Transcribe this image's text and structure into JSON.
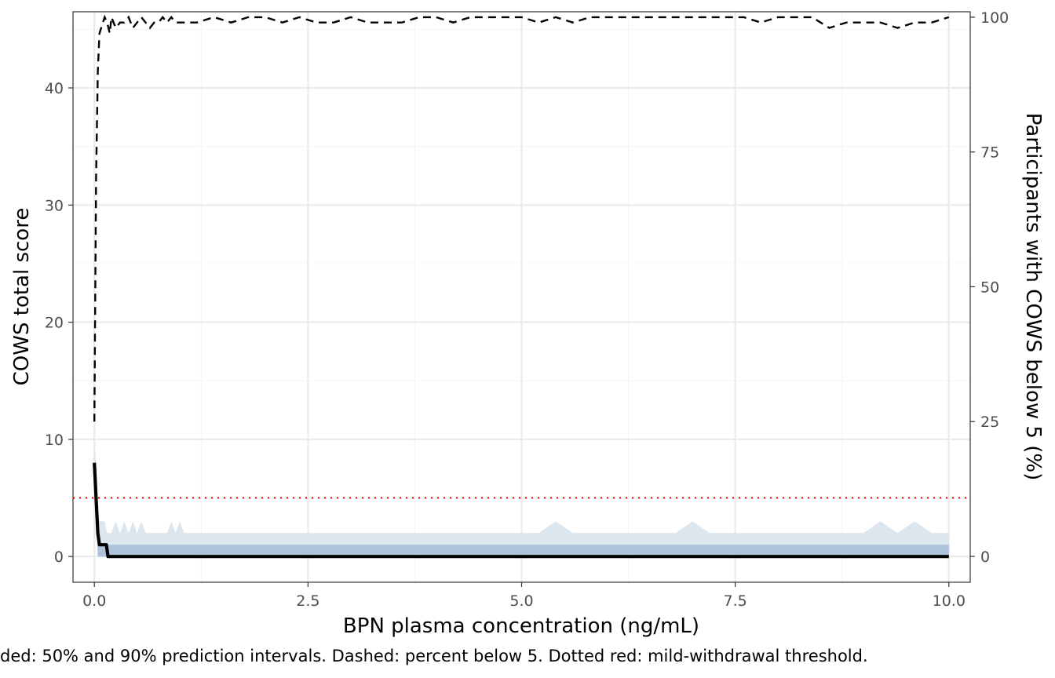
{
  "chart_data": {
    "type": "line",
    "xlabel": "BPN plasma concentration (ng/mL)",
    "ylabel": "COWS total score",
    "y2label": "Participants with COWS below 5 (%)",
    "caption": "ded: 50% and 90% prediction intervals. Dashed: percent below 5. Dotted red: mild-withdrawal threshold.",
    "xlim": [
      -0.25,
      10.25
    ],
    "ylim": [
      -2.2,
      46.5
    ],
    "y2lim": [
      -4.8,
      101.0
    ],
    "x_ticks": [
      0.0,
      2.5,
      5.0,
      7.5,
      10.0
    ],
    "x_tick_labels": [
      "0.0",
      "2.5",
      "5.0",
      "7.5",
      "10.0"
    ],
    "y_ticks": [
      0,
      10,
      20,
      30,
      40
    ],
    "y_tick_labels": [
      "0",
      "10",
      "20",
      "30",
      "40"
    ],
    "y2_ticks": [
      0,
      25,
      50,
      75,
      100
    ],
    "y2_tick_labels": [
      "0",
      "25",
      "50",
      "75",
      "100"
    ],
    "grid": true,
    "threshold": 5,
    "colors": {
      "band90": "#dce6ef",
      "band50": "#aec2dc",
      "median": "#000000",
      "percent_line": "#000000",
      "threshold": "#ff0000",
      "grid_major": "#ebebeb",
      "grid_minor": "#f5f5f5",
      "panel_border": "#333333"
    },
    "series": [
      {
        "role": "median",
        "axis": "left",
        "x": [
          0.0,
          0.02,
          0.04,
          0.06,
          0.08,
          0.1,
          0.12,
          0.14,
          0.16,
          0.2,
          1.0,
          2.0,
          3.0,
          4.0,
          5.0,
          6.0,
          7.0,
          8.0,
          9.0,
          10.0
        ],
        "y": [
          8,
          5,
          2,
          1,
          1,
          1,
          1,
          1,
          0,
          0,
          0,
          0,
          0,
          0,
          0,
          0,
          0,
          0,
          0,
          0
        ]
      },
      {
        "role": "band50",
        "axis": "left",
        "x": [
          0.0,
          0.02,
          0.04,
          0.06,
          0.1,
          2.0,
          4.0,
          6.0,
          8.0,
          10.0
        ],
        "lower": [
          7,
          4,
          0,
          0,
          0,
          0,
          0,
          0,
          0,
          0
        ],
        "upper": [
          8,
          6,
          2,
          1,
          1,
          1,
          1,
          1,
          1,
          1
        ]
      },
      {
        "role": "band90",
        "axis": "left",
        "x": [
          0.0,
          0.02,
          0.04,
          0.06,
          0.1,
          0.12,
          0.15,
          0.2,
          0.25,
          0.3,
          0.35,
          0.4,
          0.45,
          0.5,
          0.55,
          0.6,
          0.85,
          0.9,
          0.95,
          1.0,
          1.05,
          5.2,
          5.4,
          5.6,
          6.8,
          7.0,
          7.2,
          9.0,
          9.2,
          9.4,
          9.6,
          9.8,
          10.0
        ],
        "lower": [
          7,
          3,
          0,
          0,
          0,
          0,
          0,
          0,
          0,
          0,
          0,
          0,
          0,
          0,
          0,
          0,
          0,
          0,
          0,
          0,
          0,
          0,
          0,
          0,
          0,
          0,
          0,
          0,
          0,
          0,
          0,
          0,
          0
        ],
        "upper": [
          10,
          8,
          4,
          3,
          3,
          3,
          2,
          2,
          3,
          2,
          3,
          2,
          3,
          2,
          3,
          2,
          2,
          3,
          2,
          3,
          2,
          2,
          3,
          2,
          2,
          3,
          2,
          2,
          3,
          2,
          3,
          2,
          2
        ]
      },
      {
        "role": "percent_below_5",
        "axis": "right",
        "x": [
          0.0,
          0.02,
          0.04,
          0.06,
          0.08,
          0.1,
          0.12,
          0.15,
          0.18,
          0.2,
          0.25,
          0.3,
          0.35,
          0.4,
          0.45,
          0.5,
          0.55,
          0.6,
          0.65,
          0.7,
          0.75,
          0.8,
          0.85,
          0.9,
          0.95,
          1.0,
          1.2,
          1.4,
          1.6,
          1.8,
          2.0,
          2.2,
          2.4,
          2.6,
          2.8,
          3.0,
          3.2,
          3.4,
          3.6,
          3.8,
          4.0,
          4.2,
          4.4,
          4.6,
          4.8,
          5.0,
          5.2,
          5.4,
          5.6,
          5.8,
          6.0,
          6.2,
          6.4,
          6.6,
          6.8,
          7.0,
          7.2,
          7.4,
          7.6,
          7.8,
          8.0,
          8.2,
          8.4,
          8.6,
          8.8,
          9.0,
          9.2,
          9.4,
          9.6,
          9.8,
          10.0
        ],
        "y": [
          25,
          70,
          90,
          97,
          98,
          99,
          100,
          99,
          97,
          100,
          98,
          99,
          99,
          100,
          98,
          99,
          100,
          99,
          98,
          99,
          99,
          100,
          99,
          100,
          99,
          99,
          99,
          100,
          99,
          100,
          100,
          99,
          100,
          99,
          99,
          100,
          99,
          99,
          99,
          100,
          100,
          99,
          100,
          100,
          100,
          100,
          99,
          100,
          99,
          100,
          100,
          100,
          100,
          100,
          100,
          100,
          100,
          100,
          100,
          99,
          100,
          100,
          100,
          98,
          99,
          99,
          99,
          98,
          99,
          99,
          100
        ]
      }
    ]
  }
}
